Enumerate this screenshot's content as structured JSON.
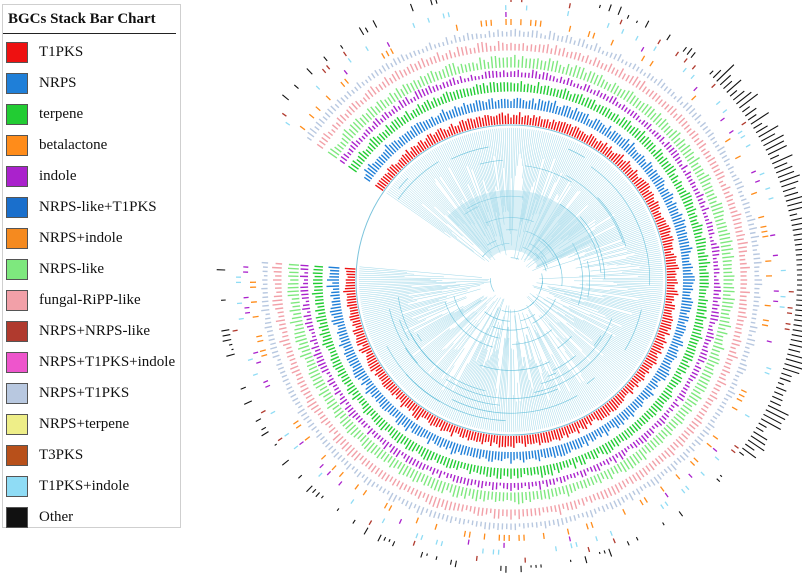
{
  "legend": {
    "title": "BGCs Stack Bar Chart",
    "items": [
      {
        "label": "T1PKS",
        "color": "#ee1111"
      },
      {
        "label": "NRPS",
        "color": "#1f7fd8"
      },
      {
        "label": "terpene",
        "color": "#22cc33"
      },
      {
        "label": "betalactone",
        "color": "#ff8c1a"
      },
      {
        "label": "indole",
        "color": "#aa22cc"
      },
      {
        "label": "NRPS-like+T1PKS",
        "color": "#1a6fcc"
      },
      {
        "label": "NRPS+indole",
        "color": "#f58a1f"
      },
      {
        "label": "NRPS-like",
        "color": "#7ee87e"
      },
      {
        "label": "fungal-RiPP-like",
        "color": "#f2a0a8"
      },
      {
        "label": "NRPS+NRPS-like",
        "color": "#b03a2e"
      },
      {
        "label": "NRPS+T1PKS+indole",
        "color": "#ee55cc"
      },
      {
        "label": "NRPS+T1PKS",
        "color": "#b8c8e0"
      },
      {
        "label": "NRPS+terpene",
        "color": "#eeee88"
      },
      {
        "label": "T3PKS",
        "color": "#b8501a"
      },
      {
        "label": "T1PKS+indole",
        "color": "#8fdcf5"
      },
      {
        "label": "Other",
        "color": "#111111"
      }
    ]
  },
  "tree_colors": {
    "branch": "#4fb6d6",
    "fill": "#a8dcea",
    "outline": "#7cc4dc"
  }
}
